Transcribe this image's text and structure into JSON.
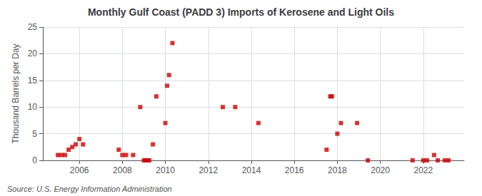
{
  "chart_data": {
    "type": "scatter",
    "title": "Monthly Gulf Coast (PADD 3) Imports of Kerosene and Light Oils",
    "ylabel": "Thousand Barrels per Day",
    "annotations": [
      "Source: U.S. Energy Information Administration"
    ],
    "color": "#cc0000",
    "marker": "square",
    "grid": true,
    "x": [
      2005.0,
      2005.17,
      2005.33,
      2005.5,
      2005.67,
      2005.83,
      2006.0,
      2006.17,
      2007.83,
      2008.0,
      2008.17,
      2008.5,
      2008.83,
      2009.0,
      2009.08,
      2009.17,
      2009.25,
      2009.42,
      2009.58,
      2010.0,
      2010.08,
      2010.17,
      2010.33,
      2012.67,
      2013.25,
      2014.33,
      2017.5,
      2017.67,
      2017.75,
      2018.0,
      2018.17,
      2018.92,
      2019.42,
      2021.5,
      2022.0,
      2022.17,
      2022.5,
      2022.67,
      2023.0,
      2023.17
    ],
    "values": [
      1.0,
      1.0,
      1.0,
      2.0,
      2.5,
      3.0,
      4.0,
      3.0,
      2.0,
      1.0,
      1.0,
      1.0,
      10.0,
      0.0,
      0.0,
      0.0,
      0.0,
      3.0,
      12.0,
      7.0,
      14.0,
      16.0,
      22.0,
      10.0,
      10.0,
      7.0,
      2.0,
      12.0,
      12.0,
      5.0,
      7.0,
      7.0,
      0.0,
      0.0,
      0.0,
      0.0,
      1.0,
      0.0,
      0.0,
      0.0
    ],
    "xlim": [
      2004.3,
      2023.9
    ],
    "xticks": [
      2006,
      2008,
      2010,
      2012,
      2014,
      2016,
      2018,
      2020,
      2022
    ],
    "ylim": [
      0,
      25
    ],
    "yticks": [
      0,
      5,
      10,
      15,
      20,
      25
    ]
  }
}
